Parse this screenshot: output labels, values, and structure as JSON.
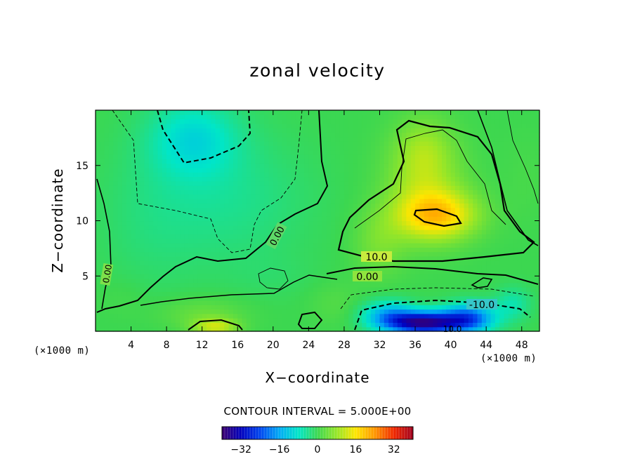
{
  "chart_data": {
    "type": "heatmap",
    "title": "zonal velocity",
    "xlabel": "X−coordinate",
    "ylabel": "Z−coordinate",
    "x_unit_left": "(×1000 m)",
    "x_unit_right": "(×1000 m)",
    "xlim": [
      0,
      50
    ],
    "ylim": [
      0,
      20
    ],
    "x_ticks": [
      4,
      8,
      12,
      16,
      20,
      24,
      28,
      32,
      36,
      40,
      44,
      48
    ],
    "y_ticks": [
      5,
      10,
      15
    ],
    "contour_interval_text": "CONTOUR INTERVAL = 5.000E+00",
    "contour_labels": [
      "0.00",
      "0.00",
      "0.00",
      "10.0",
      "10.0",
      "-10.0"
    ],
    "colorbar": {
      "range": [
        -40,
        40
      ],
      "ticks": [
        -32,
        -16,
        0,
        16,
        32
      ],
      "tick_labels": [
        "−32",
        "−16",
        "0",
        "16",
        "32"
      ]
    },
    "field_blobs": [
      {
        "x": 11,
        "z": 17.5,
        "value": -9,
        "sx": 5,
        "sz": 3.5
      },
      {
        "x": 15,
        "z": 12,
        "value": -4,
        "sx": 9,
        "sz": 6
      },
      {
        "x": 6,
        "z": 10,
        "value": -2,
        "sx": 6,
        "sz": 7
      },
      {
        "x": 20,
        "z": 5,
        "value": -1,
        "sx": 5,
        "sz": 2
      },
      {
        "x": 38.5,
        "z": 10.5,
        "value": 17,
        "sx": 4.5,
        "sz": 2.2
      },
      {
        "x": 37,
        "z": 13.5,
        "value": 8,
        "sx": 4.5,
        "sz": 4.5
      },
      {
        "x": 37,
        "z": 16.5,
        "value": 5,
        "sx": 3,
        "sz": 3
      },
      {
        "x": 32,
        "z": 8,
        "value": 5,
        "sx": 3,
        "sz": 3
      },
      {
        "x": 37,
        "z": 0.8,
        "value": -36,
        "sx": 4,
        "sz": 1.0
      },
      {
        "x": 42,
        "z": 1.2,
        "value": -22,
        "sx": 3,
        "sz": 1.3
      },
      {
        "x": 33,
        "z": 1.5,
        "value": -14,
        "sx": 3,
        "sz": 1.3
      },
      {
        "x": 47,
        "z": 2.5,
        "value": -6,
        "sx": 2,
        "sz": 1.5
      },
      {
        "x": 13.5,
        "z": 0.4,
        "value": 11,
        "sx": 2.5,
        "sz": 0.8
      },
      {
        "x": 12,
        "z": 1.6,
        "value": 4,
        "sx": 5,
        "sz": 1.5
      },
      {
        "x": 3,
        "z": 3,
        "value": 1,
        "sx": 3,
        "sz": 2
      },
      {
        "x": 27,
        "z": 2.5,
        "value": 2,
        "sx": 3,
        "sz": 2
      },
      {
        "x": 48.5,
        "z": 14,
        "value": 1,
        "sx": 2.5,
        "sz": 4
      }
    ]
  }
}
